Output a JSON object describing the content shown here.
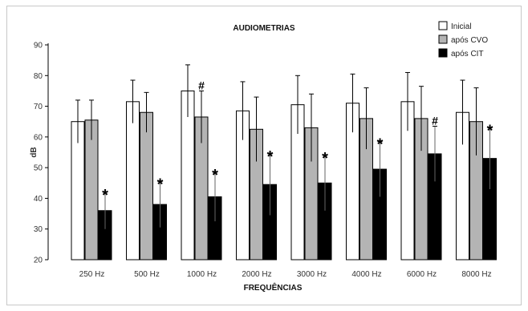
{
  "chart_data": {
    "type": "bar",
    "title": "AUDIOMETRIAS",
    "xlabel": "FREQUÊNCIAS",
    "ylabel": "dB",
    "ylim": [
      20,
      90
    ],
    "yticks": [
      20,
      30,
      40,
      50,
      60,
      70,
      80,
      90
    ],
    "categories": [
      "250 Hz",
      "500 Hz",
      "1000 Hz",
      "2000 Hz",
      "3000 Hz",
      "4000 Hz",
      "6000 Hz",
      "8000 Hz"
    ],
    "legend_position": "top-right",
    "grid": false,
    "error_bars": true,
    "series": [
      {
        "name": "Inicial",
        "color": "#ffffff",
        "values": [
          65,
          71.5,
          75,
          68.5,
          70.5,
          71,
          71.5,
          68
        ],
        "errors": [
          7,
          7,
          8.5,
          9.5,
          9.5,
          9.5,
          9.5,
          10.5
        ],
        "markers": [
          "",
          "",
          "",
          "",
          "",
          "",
          "",
          ""
        ]
      },
      {
        "name": "após CVO",
        "color": "#b4b4b4",
        "values": [
          65.5,
          68,
          66.5,
          62.5,
          63,
          66,
          66,
          65
        ],
        "errors": [
          6.5,
          6.5,
          8.5,
          10.5,
          11,
          10,
          10.5,
          11
        ],
        "markers": [
          "",
          "",
          "#",
          "",
          "",
          "",
          "",
          ""
        ]
      },
      {
        "name": "após CIT",
        "color": "#000000",
        "values": [
          36,
          38,
          40.5,
          44.5,
          45,
          49.5,
          54.5,
          53
        ],
        "errors": [
          6,
          7.5,
          8,
          10,
          9,
          9,
          9,
          10
        ],
        "markers": [
          "*",
          "*",
          "*",
          "*",
          "*",
          "*",
          "#",
          "*"
        ]
      }
    ]
  }
}
